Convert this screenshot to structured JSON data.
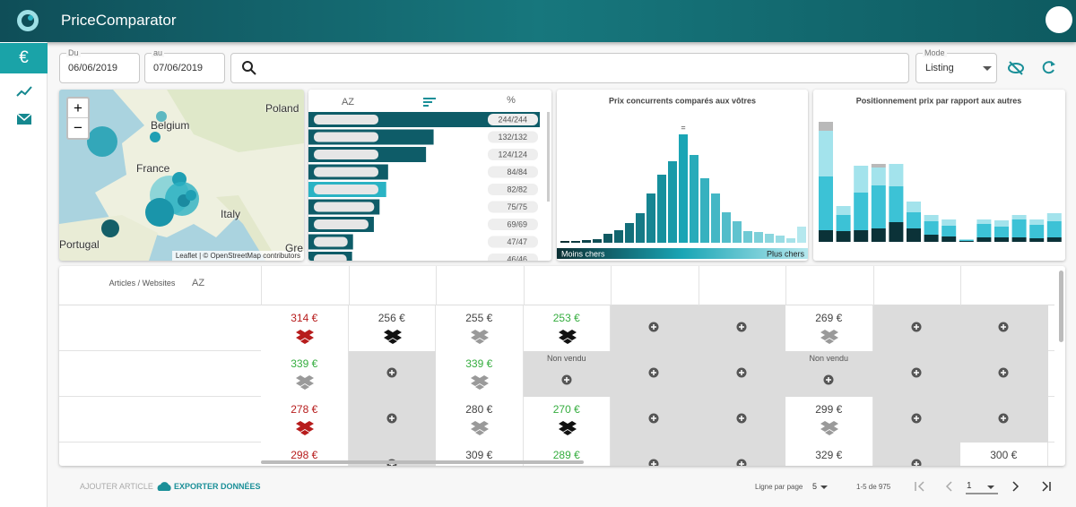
{
  "header": {
    "title": "PriceComparator"
  },
  "sidebar": {
    "active": "€"
  },
  "filters": {
    "from_label": "Du",
    "from": "06/06/2019",
    "to_label": "au",
    "to": "07/06/2019",
    "mode_label": "Mode",
    "mode": "Listing"
  },
  "map": {
    "zoom_in": "+",
    "zoom_out": "−",
    "labels": [
      "Poland",
      "Belgium",
      "France",
      "Italy",
      "Portugal",
      "Gre"
    ],
    "attribution": "Leaflet | © OpenStreetMap contributors"
  },
  "chart_data": [
    {
      "type": "hbar",
      "sort_label": "AZ",
      "percent_label": "%",
      "values": [
        244,
        132,
        124,
        84,
        82,
        75,
        69,
        47,
        46
      ],
      "value_labels": [
        "244/244",
        "132/132",
        "124/124",
        "84/84",
        "82/82",
        "75/75",
        "69/69",
        "47/47",
        "46/46"
      ],
      "color": "#0e5c68",
      "highlight": 4,
      "highlight_color": "#2ab3c4"
    },
    {
      "type": "bar",
      "title": "Prix concurrents comparés aux vôtres",
      "values": [
        2,
        2,
        3,
        4,
        10,
        14,
        22,
        33,
        55,
        76,
        91,
        121,
        98,
        72,
        55,
        34,
        24,
        13,
        12,
        10,
        8,
        5,
        18
      ],
      "marker": "=",
      "legend_low": "Moins chers",
      "legend_high": "Plus chers",
      "color_low": "#0b2f33",
      "color_mid": "#1aa5b5",
      "color_high": "#b5e8ee"
    },
    {
      "type": "stacked-bar",
      "title": "Positionnement prix par rapport aux autres",
      "series": [
        {
          "color": "#0b3238",
          "values": [
            13,
            12,
            13,
            15,
            22,
            15,
            8,
            6,
            1,
            5,
            5,
            5,
            4,
            5
          ]
        },
        {
          "color": "#3cc2d6",
          "values": [
            60,
            18,
            42,
            48,
            40,
            18,
            15,
            12,
            1,
            15,
            12,
            20,
            15,
            18
          ]
        },
        {
          "color": "#a3e3ec",
          "values": [
            51,
            10,
            30,
            20,
            25,
            12,
            7,
            7,
            1,
            5,
            7,
            5,
            6,
            9
          ]
        },
        {
          "color": "#b9b9b9",
          "values": [
            10,
            0,
            0,
            4,
            0,
            0,
            0,
            0,
            0,
            0,
            0,
            0,
            0,
            0
          ]
        }
      ]
    }
  ],
  "table": {
    "header": "Articles / Websites",
    "sort_icon": "AZ",
    "rows": [
      [
        {
          "text": "314 €",
          "tone": "red",
          "icon": "red"
        },
        {
          "text": "256 €",
          "tone": "black",
          "icon": "black"
        },
        {
          "text": "255 €",
          "tone": "black",
          "icon": "gray"
        },
        {
          "text": "253 €",
          "tone": "green",
          "icon": "black"
        },
        null,
        null,
        {
          "text": "269 €",
          "tone": "black",
          "icon": "gray"
        },
        null,
        null
      ],
      [
        {
          "text": "339 €",
          "tone": "green",
          "icon": "gray"
        },
        null,
        {
          "text": "339 €",
          "tone": "green",
          "icon": "gray"
        },
        {
          "text": "Non vendu",
          "tone": "muted",
          "icon": null
        },
        null,
        null,
        {
          "text": "Non vendu",
          "tone": "muted",
          "icon": null
        },
        null,
        null
      ],
      [
        {
          "text": "278 €",
          "tone": "red",
          "icon": "red"
        },
        null,
        {
          "text": "280 €",
          "tone": "black",
          "icon": "gray"
        },
        {
          "text": "270 €",
          "tone": "green",
          "icon": "black"
        },
        null,
        null,
        {
          "text": "299 €",
          "tone": "black",
          "icon": "gray"
        },
        null,
        null
      ],
      [
        {
          "text": "298 €",
          "tone": "red",
          "icon": "red"
        },
        null,
        {
          "text": "309 €",
          "tone": "black",
          "icon": "gray"
        },
        {
          "text": "289 €",
          "tone": "green",
          "icon": "black"
        },
        null,
        null,
        {
          "text": "329 €",
          "tone": "black",
          "icon": "gray"
        },
        null,
        {
          "text": "300 €",
          "tone": "black",
          "icon": null
        }
      ]
    ]
  },
  "footer": {
    "add": "AJOUTER ARTICLE",
    "export": "EXPORTER DONNÉES",
    "rows_label": "Ligne par page",
    "rows_per_page": "5",
    "range": "1-5 de 975",
    "page": "1"
  }
}
